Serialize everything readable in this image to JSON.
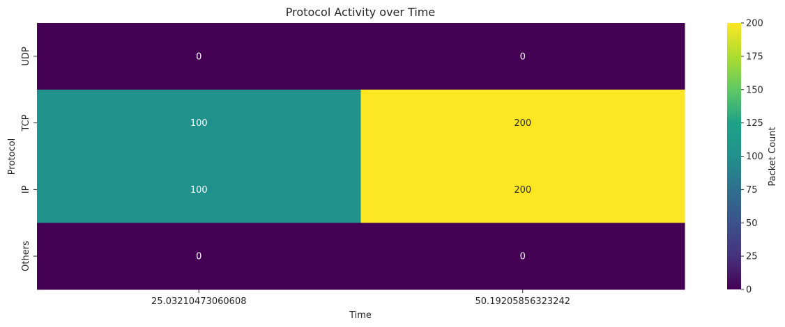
{
  "chart_data": {
    "type": "heatmap",
    "title": "Protocol Activity over Time",
    "xlabel": "Time",
    "ylabel": "Protocol",
    "x_categories": [
      "25.03210473060608",
      "50.19205856323242"
    ],
    "y_categories": [
      "UDP",
      "TCP",
      "IP",
      "Others"
    ],
    "values": [
      [
        0,
        0
      ],
      [
        100,
        200
      ],
      [
        100,
        200
      ],
      [
        0,
        0
      ]
    ],
    "colormap": "viridis",
    "color_range": [
      0,
      200
    ],
    "colorbar_label": "Packet Count",
    "colorbar_ticks": [
      0,
      25,
      50,
      75,
      100,
      125,
      150,
      175,
      200
    ],
    "annotations": true
  }
}
